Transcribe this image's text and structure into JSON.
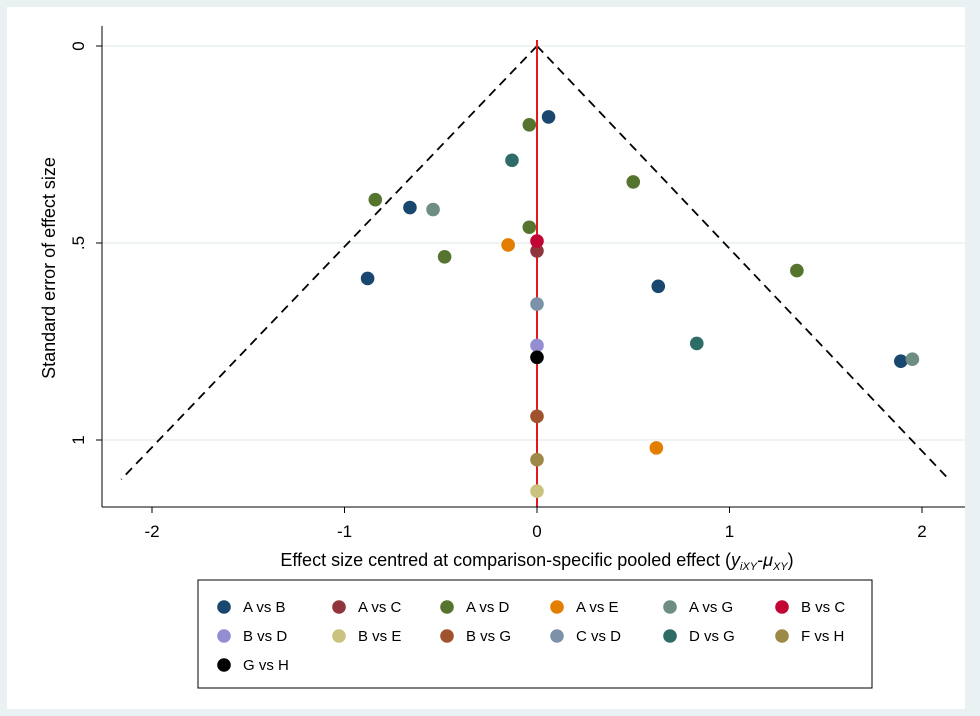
{
  "chart_data": {
    "type": "scatter",
    "title": "",
    "xlabel": {
      "text": "Effect size centred at comparison-specific pooled effect (",
      "var1": "y",
      "var1_sub": "iXY",
      "dash": "-",
      "var2": "μ",
      "var2_sub": "XY",
      "close": ")"
    },
    "ylabel": "Standard error of effect size",
    "xlim": [
      -2.2,
      2.2
    ],
    "ylim": [
      0,
      1.15
    ],
    "y_reversed": true,
    "xticks": [
      -2,
      -1,
      0,
      1,
      2
    ],
    "xtick_labels": [
      "-2",
      "-1",
      "0",
      "1",
      "2"
    ],
    "yticks": [
      0,
      0.5,
      1
    ],
    "ytick_labels": [
      "0",
      ".5",
      "1"
    ],
    "grid": "horizontal",
    "reference_line": {
      "x": 0,
      "color": "#e31a1c"
    },
    "funnel_limits": {
      "apex": [
        0,
        0
      ],
      "left_end": [
        -2.16,
        1.1
      ],
      "right_end": [
        2.14,
        1.1
      ],
      "style": "dashed"
    },
    "legend_position": "bottom",
    "series": [
      {
        "name": "A vs B",
        "color": "#1a476f",
        "points": [
          [
            0.06,
            0.18
          ],
          [
            -0.66,
            0.41
          ],
          [
            -0.88,
            0.59
          ],
          [
            0.63,
            0.61
          ],
          [
            1.89,
            0.8
          ]
        ]
      },
      {
        "name": "A vs C",
        "color": "#90353b",
        "points": [
          [
            0.0,
            0.52
          ]
        ]
      },
      {
        "name": "A vs D",
        "color": "#55752f",
        "points": [
          [
            -0.04,
            0.2
          ],
          [
            0.5,
            0.345
          ],
          [
            -0.84,
            0.39
          ],
          [
            -0.04,
            0.46
          ],
          [
            -0.48,
            0.535
          ],
          [
            1.35,
            0.57
          ]
        ]
      },
      {
        "name": "A vs E",
        "color": "#e37e00",
        "points": [
          [
            -0.15,
            0.505
          ],
          [
            0.62,
            1.02
          ]
        ]
      },
      {
        "name": "A vs G",
        "color": "#6e8e84",
        "points": [
          [
            -0.54,
            0.415
          ],
          [
            1.95,
            0.795
          ]
        ]
      },
      {
        "name": "B vs C",
        "color": "#c10534",
        "points": [
          [
            0.0,
            0.495
          ]
        ]
      },
      {
        "name": "B vs D",
        "color": "#938dd2",
        "points": [
          [
            0.0,
            0.76
          ]
        ]
      },
      {
        "name": "B vs E",
        "color": "#cac27e",
        "points": [
          [
            0.0,
            1.13
          ]
        ]
      },
      {
        "name": "B vs G",
        "color": "#a0522d",
        "points": [
          [
            0.0,
            0.94
          ]
        ]
      },
      {
        "name": "C vs D",
        "color": "#7b92a8",
        "points": [
          [
            0.0,
            0.655
          ]
        ]
      },
      {
        "name": "D vs G",
        "color": "#2d6d66",
        "points": [
          [
            -0.13,
            0.29
          ],
          [
            0.83,
            0.755
          ]
        ]
      },
      {
        "name": "F vs H",
        "color": "#9c8847",
        "points": [
          [
            0.0,
            1.05
          ]
        ]
      },
      {
        "name": "G vs H",
        "color": "#000000",
        "points": [
          [
            0.0,
            0.79
          ]
        ]
      }
    ]
  }
}
